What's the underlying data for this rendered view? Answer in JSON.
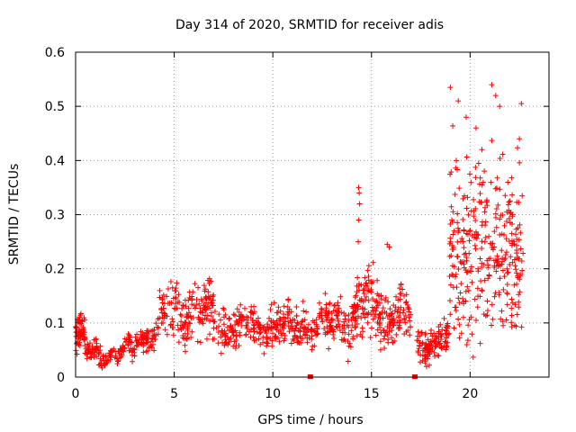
{
  "chart_data": {
    "type": "scatter",
    "title": "Day 314 of 2020, SRMTID for receiver adis",
    "xlabel": "GPS time / hours",
    "ylabel": "SRMTID / TECUs",
    "xlim": [
      0,
      24
    ],
    "ylim": [
      0,
      0.6
    ],
    "x_ticks": [
      0,
      5,
      10,
      15,
      20
    ],
    "x_tick_labels": [
      "0",
      "5",
      "10",
      "15",
      "20"
    ],
    "y_ticks": [
      0,
      0.1,
      0.2,
      0.3,
      0.4,
      0.5,
      0.6
    ],
    "y_tick_labels": [
      "0",
      "0.1",
      "0.2",
      "0.3",
      "0.4",
      "0.5",
      "0.6"
    ],
    "grid": true,
    "marker": "plus",
    "series_color": "#ff0000",
    "gap_markers_x": [
      11.9,
      17.2
    ],
    "segments": [
      {
        "x": [
          0.0,
          0.5
        ],
        "base": 0.07,
        "spread": 0.05,
        "n": 60
      },
      {
        "x": [
          0.5,
          3.0
        ],
        "base": 0.045,
        "spread": 0.025,
        "n": 140
      },
      {
        "x": [
          3.0,
          4.2
        ],
        "base": 0.08,
        "spread": 0.04,
        "n": 70
      },
      {
        "x": [
          4.2,
          7.0
        ],
        "base": 0.115,
        "spread": 0.07,
        "n": 180
      },
      {
        "x": [
          7.0,
          12.5
        ],
        "base": 0.095,
        "spread": 0.055,
        "n": 320
      },
      {
        "x": [
          12.5,
          14.2
        ],
        "base": 0.1,
        "spread": 0.065,
        "n": 110
      },
      {
        "x": [
          14.2,
          15.4
        ],
        "base": 0.13,
        "spread": 0.09,
        "n": 90
      },
      {
        "x": [
          15.4,
          17.0
        ],
        "base": 0.11,
        "spread": 0.07,
        "n": 110
      },
      {
        "x": [
          17.3,
          18.9
        ],
        "base": 0.065,
        "spread": 0.045,
        "n": 120
      },
      {
        "x": [
          18.9,
          22.7
        ],
        "base": 0.24,
        "spread": 0.24,
        "n": 330
      }
    ],
    "highlights": [
      {
        "x": 14.35,
        "y": 0.35
      },
      {
        "x": 14.38,
        "y": 0.34
      },
      {
        "x": 14.4,
        "y": 0.32
      },
      {
        "x": 14.36,
        "y": 0.29
      },
      {
        "x": 14.33,
        "y": 0.25
      },
      {
        "x": 15.8,
        "y": 0.245
      },
      {
        "x": 15.9,
        "y": 0.24
      },
      {
        "x": 19.0,
        "y": 0.535
      },
      {
        "x": 21.1,
        "y": 0.54
      },
      {
        "x": 21.3,
        "y": 0.52
      },
      {
        "x": 22.6,
        "y": 0.505
      },
      {
        "x": 19.4,
        "y": 0.51
      },
      {
        "x": 19.8,
        "y": 0.48
      },
      {
        "x": 20.3,
        "y": 0.46
      },
      {
        "x": 21.5,
        "y": 0.5
      },
      {
        "x": 22.5,
        "y": 0.44
      },
      {
        "x": 20.6,
        "y": 0.42
      },
      {
        "x": 19.3,
        "y": 0.4
      }
    ]
  }
}
